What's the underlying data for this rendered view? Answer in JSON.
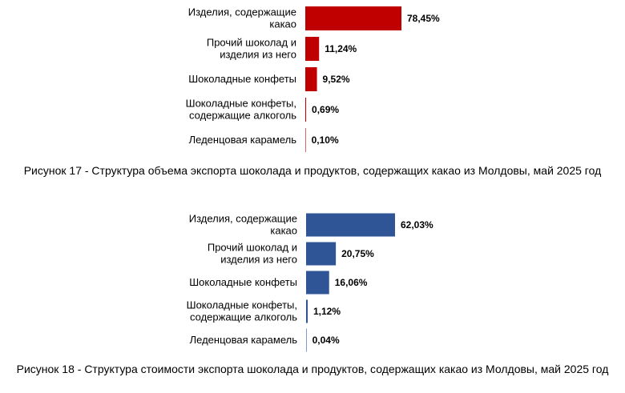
{
  "chart_data": [
    {
      "type": "bar",
      "orientation": "horizontal",
      "categories": [
        [
          "Изделия, содержащие",
          "какао"
        ],
        [
          "Прочий шоколад и",
          "изделия из него"
        ],
        [
          "Шоколадные конфеты"
        ],
        [
          "Шоколадные конфеты,",
          "содержащие алкоголь"
        ],
        [
          "Леденцовая карамель"
        ]
      ],
      "values": [
        78.45,
        11.24,
        9.52,
        0.69,
        0.1
      ],
      "value_labels": [
        "78,45%",
        "11,24%",
        "9,52%",
        "0,69%",
        "0,10%"
      ],
      "color": "#c00000",
      "unit": "%"
    },
    {
      "type": "bar",
      "orientation": "horizontal",
      "categories": [
        [
          "Изделия, содержащие",
          "какао"
        ],
        [
          "Прочий шоколад и",
          "изделия из него"
        ],
        [
          "Шоколадные конфеты"
        ],
        [
          "Шоколадные конфеты,",
          "содержащие алкоголь"
        ],
        [
          "Леденцовая карамель"
        ]
      ],
      "values": [
        62.03,
        20.75,
        16.06,
        1.12,
        0.04
      ],
      "value_labels": [
        "62,03%",
        "20,75%",
        "16,06%",
        "1,12%",
        "0,04%"
      ],
      "color": "#2f5597",
      "unit": "%"
    }
  ],
  "captions": {
    "figure17": "Рисунок 17 - Структура объема экспорта шоколада и продуктов, содержащих какао из Молдовы, май 2025 год",
    "figure18": "Рисунок 18 - Структура стоимости экспорта шоколада и продуктов, содержащих какао из Молдовы, май 2025 год"
  }
}
